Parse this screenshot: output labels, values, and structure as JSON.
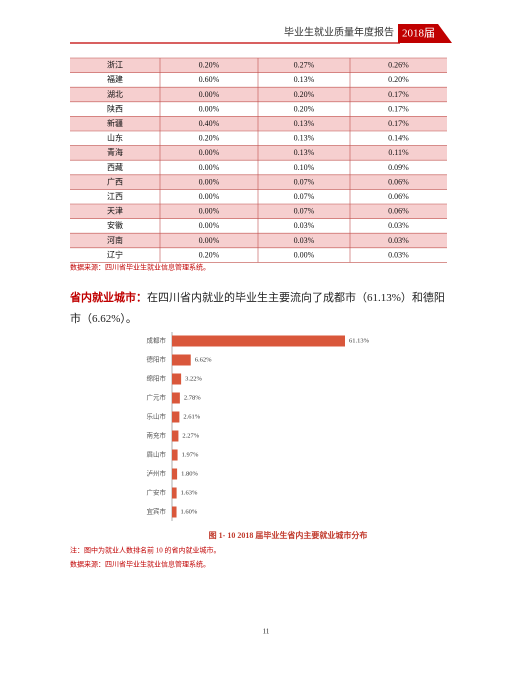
{
  "header": {
    "title": "毕业生就业质量年度报告",
    "badge": "2018届"
  },
  "table": {
    "rows": [
      [
        "浙江",
        "0.20%",
        "0.27%",
        "0.26%"
      ],
      [
        "福建",
        "0.60%",
        "0.13%",
        "0.20%"
      ],
      [
        "湖北",
        "0.00%",
        "0.20%",
        "0.17%"
      ],
      [
        "陕西",
        "0.00%",
        "0.20%",
        "0.17%"
      ],
      [
        "新疆",
        "0.40%",
        "0.13%",
        "0.17%"
      ],
      [
        "山东",
        "0.20%",
        "0.13%",
        "0.14%"
      ],
      [
        "青海",
        "0.00%",
        "0.13%",
        "0.11%"
      ],
      [
        "西藏",
        "0.00%",
        "0.10%",
        "0.09%"
      ],
      [
        "广西",
        "0.00%",
        "0.07%",
        "0.06%"
      ],
      [
        "江西",
        "0.00%",
        "0.07%",
        "0.06%"
      ],
      [
        "天津",
        "0.00%",
        "0.07%",
        "0.06%"
      ],
      [
        "安徽",
        "0.00%",
        "0.03%",
        "0.03%"
      ],
      [
        "河南",
        "0.00%",
        "0.03%",
        "0.03%"
      ],
      [
        "辽宁",
        "0.20%",
        "0.00%",
        "0.03%"
      ]
    ]
  },
  "table_source": "数据来源：四川省毕业生就业信息管理系统。",
  "paragraph": {
    "lead": "省内就业城市：",
    "text": "在四川省内就业的毕业生主要流向了成都市（61.13%）和德阳市（6.62%）。"
  },
  "chart_data": {
    "type": "bar",
    "orientation": "horizontal",
    "categories": [
      "成都市",
      "德阳市",
      "绵阳市",
      "广元市",
      "乐山市",
      "南充市",
      "眉山市",
      "泸州市",
      "广安市",
      "宜宾市"
    ],
    "values": [
      61.13,
      6.62,
      3.22,
      2.78,
      2.61,
      2.27,
      1.97,
      1.8,
      1.63,
      1.6
    ],
    "value_labels": [
      "61.13%",
      "6.62%",
      "3.22%",
      "2.78%",
      "2.61%",
      "2.27%",
      "1.97%",
      "1.80%",
      "1.63%",
      "1.60%"
    ],
    "color": "#d9573b",
    "title": "图 1- 10   2018 届毕业生省内主要就业城市分布"
  },
  "notes": [
    "注：图中为就业人数排名前 10 的省内就业城市。",
    "数据来源：四川省毕业生就业信息管理系统。"
  ],
  "page_number": "11"
}
